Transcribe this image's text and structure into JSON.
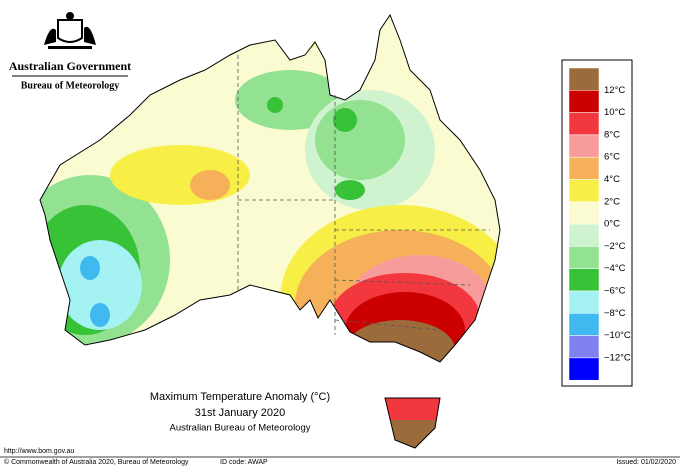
{
  "header": {
    "title": "Australian Government",
    "subtitle": "Bureau of Meteorology"
  },
  "map": {
    "title": "Maximum Temperature Anomaly (°C)",
    "date": "31st January 2020",
    "source": "Australian Bureau of Meteorology"
  },
  "legend": {
    "labels": [
      "12°C",
      "10°C",
      "8°C",
      "6°C",
      "4°C",
      "2°C",
      "0°C",
      "−2°C",
      "−4°C",
      "−6°C",
      "−8°C",
      "−10°C",
      "−12°C"
    ],
    "colors": [
      "#9c6b3c",
      "#cc0000",
      "#f2383e",
      "#f79b9b",
      "#f6b05a",
      "#f7ef45",
      "#fbfbd2",
      "#cff3cf",
      "#92e292",
      "#37c237",
      "#a4f2f2",
      "#40b8f0",
      "#8080f0",
      "#0000ff"
    ]
  },
  "footer": {
    "url": "http://www.bom.gov.au",
    "copyright": "© Commonwealth of Australia 2020, Bureau of Meteorology",
    "id_code": "ID code: AWAP",
    "issued": "Issued: 01/02/2020"
  }
}
